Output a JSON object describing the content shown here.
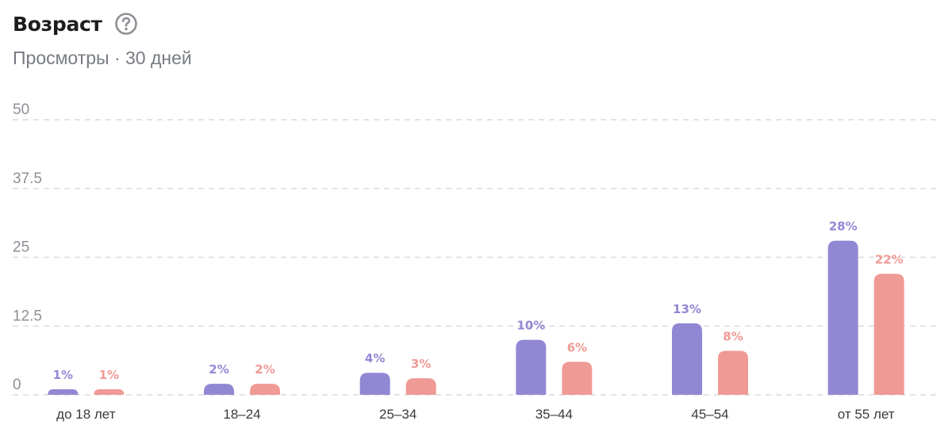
{
  "header": {
    "title": "Возраст",
    "subtitle": "Просмотры · 30 дней",
    "help_icon": "question-circle-icon"
  },
  "colors": {
    "series_1": "#9188d4",
    "series_2": "#f09a95",
    "grid": "#dcdcdc"
  },
  "chart_data": {
    "type": "bar",
    "categories": [
      "до 18 лет",
      "18–24",
      "25–34",
      "35–44",
      "45–54",
      "от 55 лет"
    ],
    "series": [
      {
        "values": [
          1,
          2,
          4,
          10,
          13,
          28
        ],
        "labels": [
          "1%",
          "2%",
          "4%",
          "10%",
          "13%",
          "28%"
        ]
      },
      {
        "values": [
          1,
          2,
          3,
          6,
          8,
          22
        ],
        "labels": [
          "1%",
          "2%",
          "3%",
          "6%",
          "8%",
          "22%"
        ]
      }
    ],
    "y_ticks": [
      "0",
      "12.5",
      "25",
      "37.5",
      "50"
    ],
    "ylim": [
      0,
      50
    ],
    "grid": true,
    "grid_style": "dashed",
    "legend": "none"
  }
}
